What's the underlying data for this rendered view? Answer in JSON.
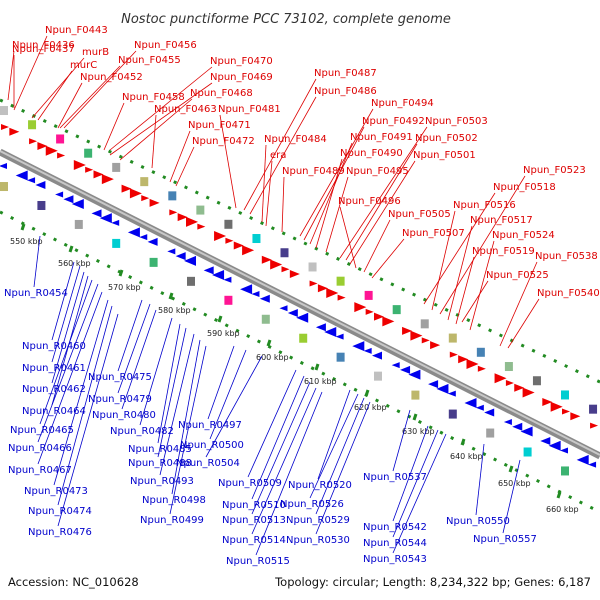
{
  "title": "Nostoc punctiforme PCC 73102, complete genome",
  "footer": {
    "accession": "Accession: NC_010628",
    "summary": "Topology: circular; Length: 8,234,322 bp; Genes: 6,187"
  },
  "colors": {
    "forward_label": "#dd0000",
    "reverse_label": "#0000cc",
    "backbone": "#999999",
    "tick": "#228b22"
  },
  "scale_labels": [
    "550 kbp",
    "560 kbp",
    "570 kbp",
    "580 kbp",
    "590 kbp",
    "600 kbp",
    "610 kbp",
    "620 kbp",
    "630 kbp",
    "640 kbp",
    "650 kbp",
    "660 kbp"
  ],
  "forward_genes": [
    "Npun_F0436",
    "Npun_F0443",
    "Npun_F0437",
    "murB",
    "murC",
    "Npun_F0456",
    "Npun_F0455",
    "Npun_F0452",
    "Npun_F0458",
    "Npun_F0470",
    "Npun_F0469",
    "Npun_F0468",
    "Npun_F0463",
    "Npun_F0471",
    "Npun_F0472",
    "Npun_F0481",
    "Npun_F0487",
    "Npun_F0486",
    "Npun_F0484",
    "era",
    "Npun_F0489",
    "Npun_F0494",
    "Npun_F0492",
    "Npun_F0491",
    "Npun_F0490",
    "Npun_F0495",
    "Npun_F0503",
    "Npun_F0502",
    "Npun_F0501",
    "Npun_F0496",
    "Npun_F0505",
    "Npun_F0507",
    "Npun_F0523",
    "Npun_F0518",
    "Npun_F0516",
    "Npun_F0517",
    "Npun_F0524",
    "Npun_F0519",
    "Npun_F0538",
    "Npun_F0525",
    "Npun_F0540"
  ],
  "reverse_genes": [
    "Npun_R0454",
    "Npun_R0460",
    "Npun_R0461",
    "Npun_R0462",
    "Npun_R0464",
    "Npun_R0465",
    "Npun_R0466",
    "Npun_R0467",
    "Npun_R0473",
    "Npun_R0474",
    "Npun_R0476",
    "Npun_R0475",
    "Npun_R0479",
    "Npun_R0480",
    "Npun_R0482",
    "Npun_R0485",
    "Npun_R0488",
    "Npun_R0493",
    "Npun_R0497",
    "Npun_R0500",
    "Npun_R0504",
    "Npun_R0498",
    "Npun_R0499",
    "Npun_R0509",
    "Npun_R0510",
    "Npun_R0513",
    "Npun_R0514",
    "Npun_R0515",
    "Npun_R0520",
    "Npun_R0526",
    "Npun_R0529",
    "Npun_R0530",
    "Npun_R0537",
    "Npun_R0542",
    "Npun_R0544",
    "Npun_R0543",
    "Npun_R0550",
    "Npun_R0557"
  ]
}
